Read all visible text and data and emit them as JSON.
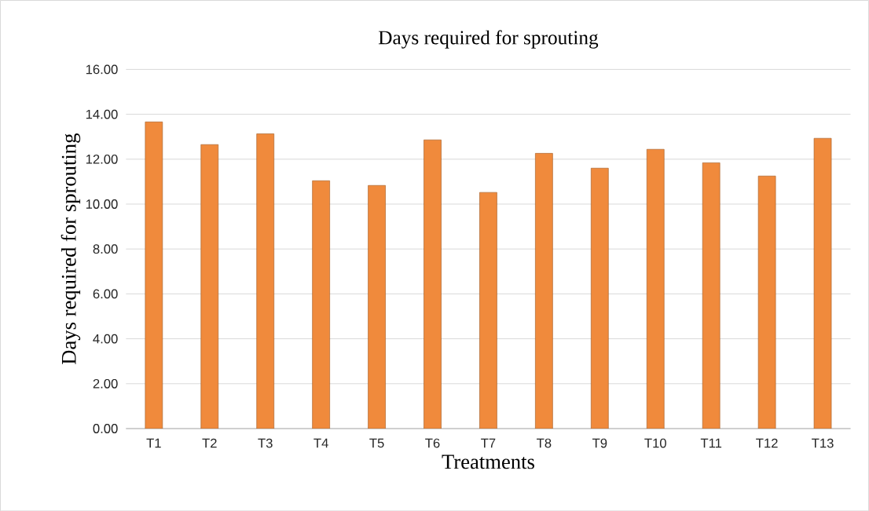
{
  "chart_data": {
    "type": "bar",
    "title": "Days required for sprouting",
    "xlabel": "Treatments",
    "ylabel": "Days required for sprouting",
    "categories": [
      "T1",
      "T2",
      "T3",
      "T4",
      "T5",
      "T6",
      "T7",
      "T8",
      "T9",
      "T10",
      "T11",
      "T12",
      "T13"
    ],
    "values": [
      13.66,
      12.65,
      13.13,
      11.04,
      10.83,
      12.86,
      10.52,
      12.26,
      11.6,
      12.44,
      11.84,
      11.25,
      12.93
    ],
    "color": "#f08a3c",
    "ylim": [
      0,
      16
    ],
    "yticks": [
      {
        "value": 0,
        "label": "0.00"
      },
      {
        "value": 2,
        "label": "2.00"
      },
      {
        "value": 4,
        "label": "4.00"
      },
      {
        "value": 6,
        "label": "6.00"
      },
      {
        "value": 8,
        "label": "8.00"
      },
      {
        "value": 10,
        "label": "10.00"
      },
      {
        "value": 12,
        "label": "12.00"
      },
      {
        "value": 14,
        "label": "14.00"
      },
      {
        "value": 16,
        "label": "16.00"
      }
    ],
    "grid": "y"
  }
}
